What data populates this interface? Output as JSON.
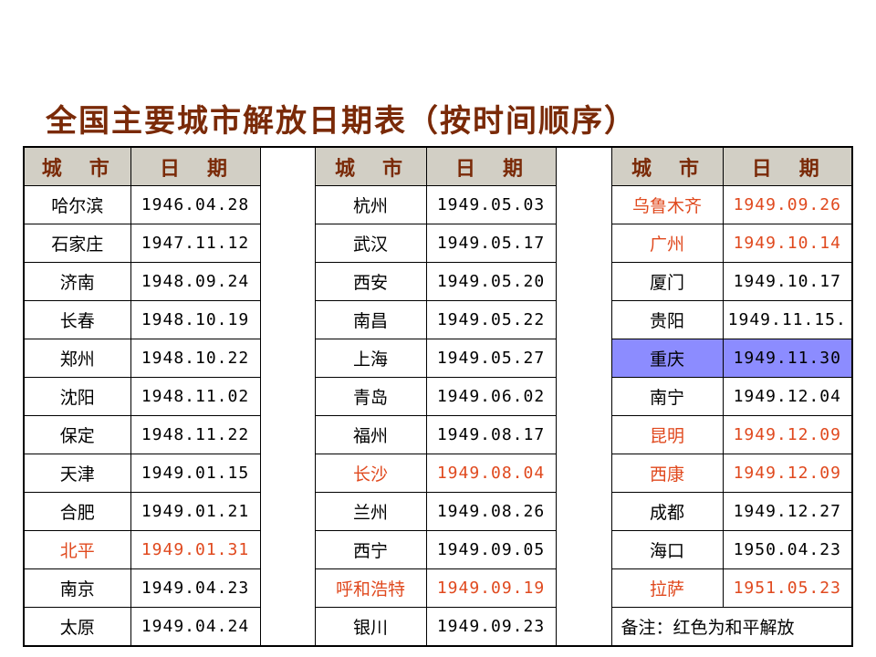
{
  "title": "全国主要城市解放日期表（按时间顺序）",
  "headers": {
    "city": "城　市",
    "date": "日　期"
  },
  "colors": {
    "title": "#7a2a08",
    "header_bg": "#d2cfc5",
    "peaceful_red": "#e0491e",
    "highlight": "#8c8cff"
  },
  "rows": [
    {
      "c1": "哈尔滨",
      "d1": "1946.04.28",
      "c2": "杭州",
      "d2": "1949.05.03",
      "c3": "乌鲁木齐",
      "d3": "1949.09.26"
    },
    {
      "c1": "石家庄",
      "d1": "1947.11.12",
      "c2": "武汉",
      "d2": "1949.05.17",
      "c3": "广州",
      "d3": "1949.10.14"
    },
    {
      "c1": "济南",
      "d1": "1948.09.24",
      "c2": "西安",
      "d2": "1949.05.20",
      "c3": "厦门",
      "d3": "1949.10.17"
    },
    {
      "c1": "长春",
      "d1": "1948.10.19",
      "c2": "南昌",
      "d2": "1949.05.22",
      "c3": "贵阳",
      "d3": "1949.11.15."
    },
    {
      "c1": "郑州",
      "d1": "1948.10.22",
      "c2": "上海",
      "d2": "1949.05.27",
      "c3": "重庆",
      "d3": "1949.11.30"
    },
    {
      "c1": "沈阳",
      "d1": "1948.11.02",
      "c2": "青岛",
      "d2": "1949.06.02",
      "c3": "南宁",
      "d3": "1949.12.04"
    },
    {
      "c1": "保定",
      "d1": "1948.11.22",
      "c2": "福州",
      "d2": "1949.08.17",
      "c3": "昆明",
      "d3": "1949.12.09"
    },
    {
      "c1": "天津",
      "d1": "1949.01.15",
      "c2": "长沙",
      "d2": "1949.08.04",
      "c3": "西康",
      "d3": "1949.12.09"
    },
    {
      "c1": "合肥",
      "d1": "1949.01.21",
      "c2": "兰州",
      "d2": "1949.08.26",
      "c3": "成都",
      "d3": "1949.12.27"
    },
    {
      "c1": "北平",
      "d1": "1949.01.31",
      "c2": "西宁",
      "d2": "1949.09.05",
      "c3": "海口",
      "d3": "1950.04.23"
    },
    {
      "c1": "南京",
      "d1": "1949.04.23",
      "c2": "呼和浩特",
      "d2": "1949.09.19",
      "c3": "拉萨",
      "d3": "1951.05.23"
    },
    {
      "c1": "太原",
      "d1": "1949.04.24",
      "c2": "银川",
      "d2": "1949.09.23"
    }
  ],
  "note": "备注：红色为和平解放"
}
